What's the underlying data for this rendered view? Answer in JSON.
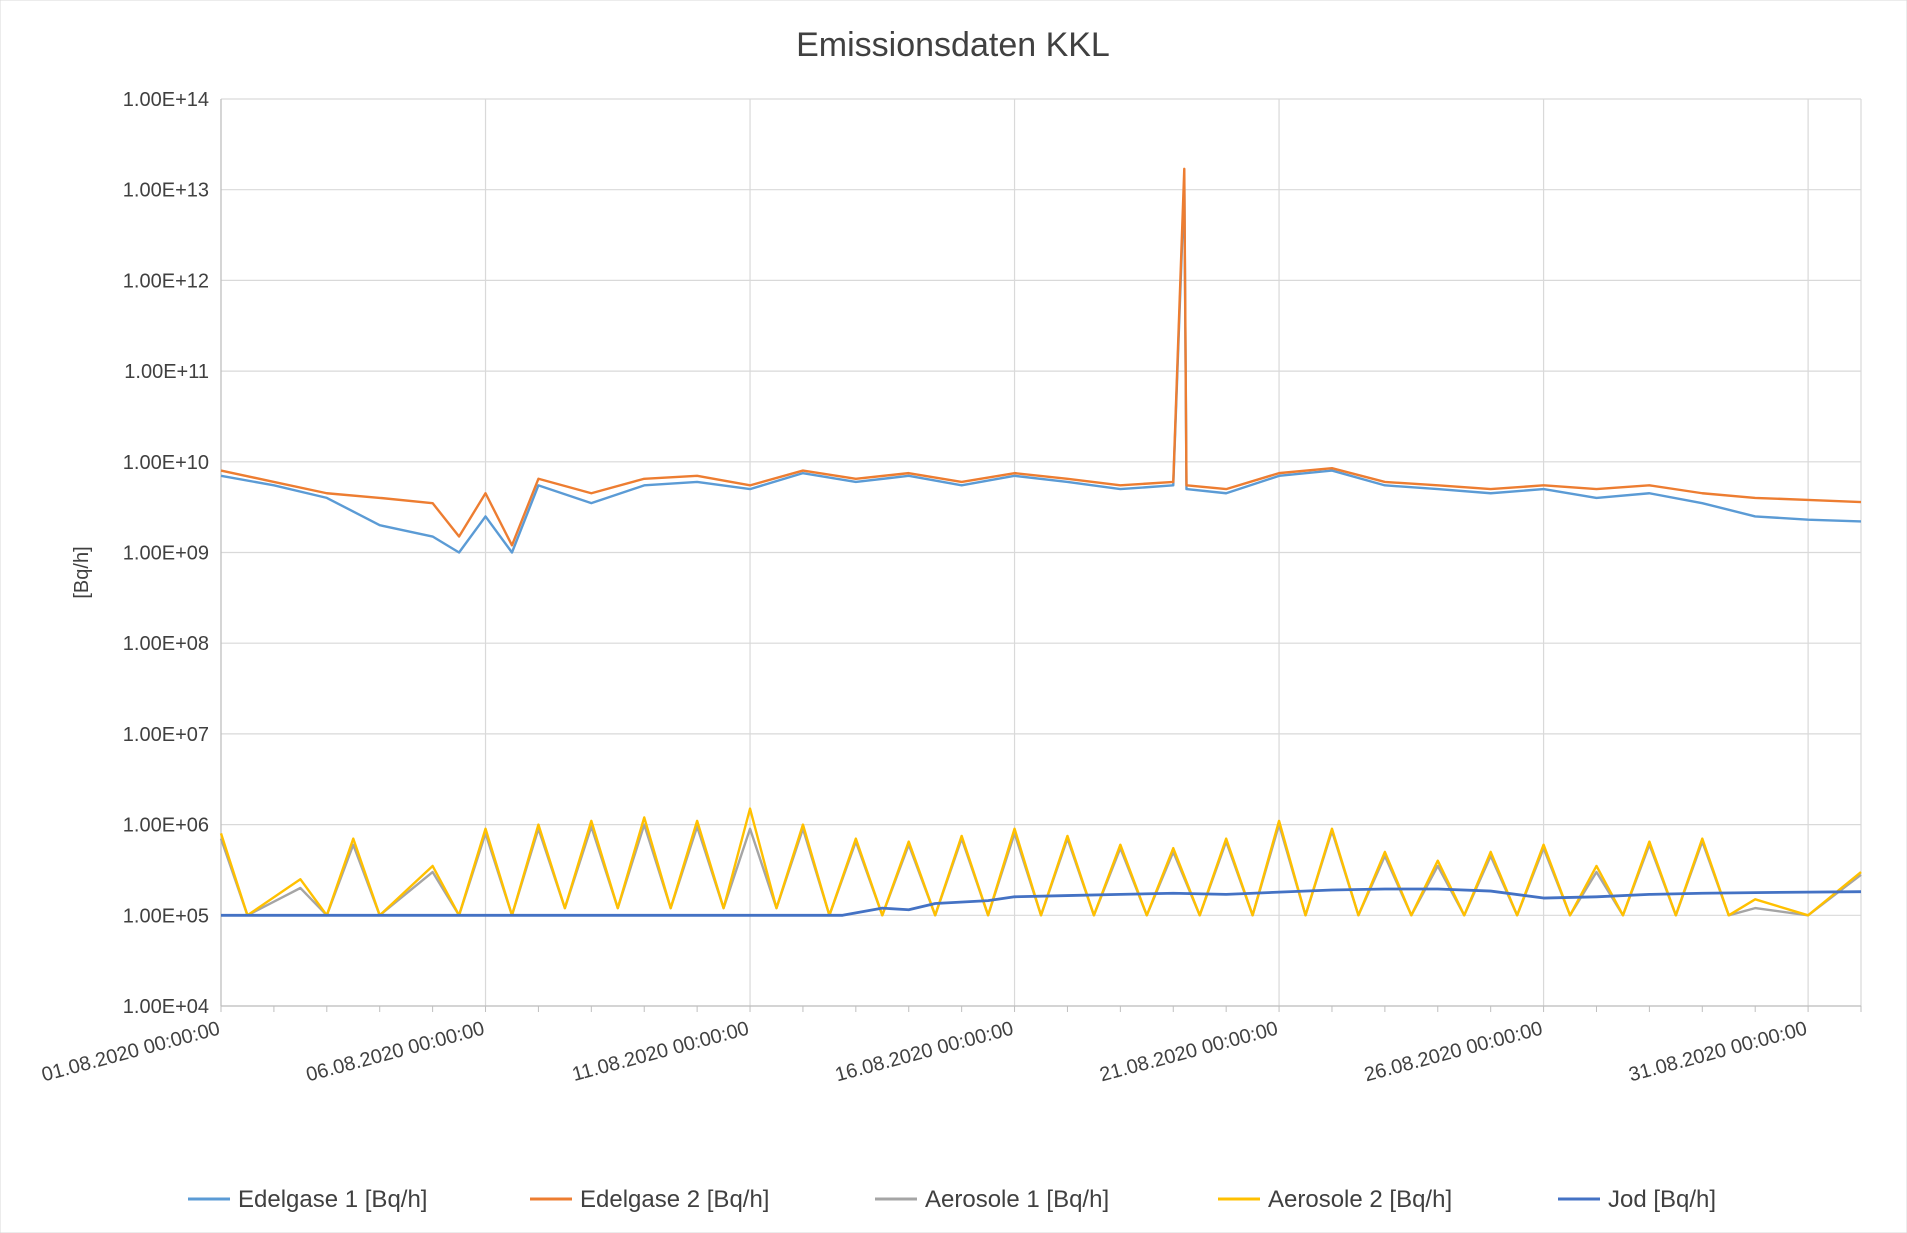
{
  "chart_data": {
    "type": "line",
    "title": "Emissionsdaten KKL",
    "ylabel": "[Bq/h]",
    "xlabel": "",
    "yscale": "log",
    "ylim": [
      10000,
      100000000000000
    ],
    "y_tick_labels": [
      "1.00E+04",
      "1.00E+05",
      "1.00E+06",
      "1.00E+07",
      "1.00E+08",
      "1.00E+09",
      "1.00E+10",
      "1.00E+11",
      "1.00E+12",
      "1.00E+13",
      "1.00E+14"
    ],
    "y_tick_values": [
      10000,
      100000,
      1000000,
      10000000,
      100000000,
      1000000000,
      10000000000,
      100000000000,
      1000000000000,
      10000000000000,
      100000000000000
    ],
    "xlim": [
      "01.08.2020 00:00:00",
      "01.09.2020 00:00:00"
    ],
    "x_tick_labels": [
      "01.08.2020 00:00:00",
      "06.08.2020 00:00:00",
      "11.08.2020 00:00:00",
      "16.08.2020 00:00:00",
      "21.08.2020 00:00:00",
      "26.08.2020 00:00:00",
      "31.08.2020 00:00:00"
    ],
    "grid": true,
    "legend_position": "bottom",
    "series": [
      {
        "name": "Edelgase 1 [Bq/h]",
        "color": "#5B9BD5",
        "points": [
          [
            "01.08.2020 00:00:00",
            7000000000
          ],
          [
            "02.08.2020 00:00:00",
            5500000000
          ],
          [
            "03.08.2020 00:00:00",
            4000000000
          ],
          [
            "04.08.2020 00:00:00",
            2000000000
          ],
          [
            "05.08.2020 00:00:00",
            1500000000
          ],
          [
            "05.08.2020 12:00:00",
            1000000000
          ],
          [
            "06.08.2020 00:00:00",
            2500000000
          ],
          [
            "06.08.2020 12:00:00",
            1000000000
          ],
          [
            "07.08.2020 00:00:00",
            5500000000
          ],
          [
            "08.08.2020 00:00:00",
            3500000000
          ],
          [
            "09.08.2020 00:00:00",
            5500000000
          ],
          [
            "10.08.2020 00:00:00",
            6000000000
          ],
          [
            "11.08.2020 00:00:00",
            5000000000
          ],
          [
            "12.08.2020 00:00:00",
            7500000000
          ],
          [
            "13.08.2020 00:00:00",
            6000000000
          ],
          [
            "14.08.2020 00:00:00",
            7000000000
          ],
          [
            "15.08.2020 00:00:00",
            5500000000
          ],
          [
            "16.08.2020 00:00:00",
            7000000000
          ],
          [
            "17.08.2020 00:00:00",
            6000000000
          ],
          [
            "18.08.2020 00:00:00",
            5000000000
          ],
          [
            "19.08.2020 00:00:00",
            5500000000
          ],
          [
            "19.08.2020 05:00:00",
            12000000000000
          ],
          [
            "19.08.2020 06:00:00",
            5000000000
          ],
          [
            "20.08.2020 00:00:00",
            4500000000
          ],
          [
            "21.08.2020 00:00:00",
            7000000000
          ],
          [
            "22.08.2020 00:00:00",
            8000000000
          ],
          [
            "23.08.2020 00:00:00",
            5500000000
          ],
          [
            "24.08.2020 00:00:00",
            5000000000
          ],
          [
            "25.08.2020 00:00:00",
            4500000000
          ],
          [
            "26.08.2020 00:00:00",
            5000000000
          ],
          [
            "27.08.2020 00:00:00",
            4000000000
          ],
          [
            "28.08.2020 00:00:00",
            4500000000
          ],
          [
            "29.08.2020 00:00:00",
            3500000000
          ],
          [
            "30.08.2020 00:00:00",
            2500000000
          ],
          [
            "31.08.2020 00:00:00",
            2300000000
          ],
          [
            "01.09.2020 00:00:00",
            2200000000
          ]
        ]
      },
      {
        "name": "Edelgase 2 [Bq/h]",
        "color": "#ED7D31",
        "points": [
          [
            "01.08.2020 00:00:00",
            8000000000
          ],
          [
            "02.08.2020 00:00:00",
            6000000000
          ],
          [
            "03.08.2020 00:00:00",
            4500000000
          ],
          [
            "04.08.2020 00:00:00",
            4000000000
          ],
          [
            "05.08.2020 00:00:00",
            3500000000
          ],
          [
            "05.08.2020 12:00:00",
            1500000000
          ],
          [
            "06.08.2020 00:00:00",
            4500000000
          ],
          [
            "06.08.2020 12:00:00",
            1200000000
          ],
          [
            "07.08.2020 00:00:00",
            6500000000
          ],
          [
            "08.08.2020 00:00:00",
            4500000000
          ],
          [
            "09.08.2020 00:00:00",
            6500000000
          ],
          [
            "10.08.2020 00:00:00",
            7000000000
          ],
          [
            "11.08.2020 00:00:00",
            5500000000
          ],
          [
            "12.08.2020 00:00:00",
            8000000000
          ],
          [
            "13.08.2020 00:00:00",
            6500000000
          ],
          [
            "14.08.2020 00:00:00",
            7500000000
          ],
          [
            "15.08.2020 00:00:00",
            6000000000
          ],
          [
            "16.08.2020 00:00:00",
            7500000000
          ],
          [
            "17.08.2020 00:00:00",
            6500000000
          ],
          [
            "18.08.2020 00:00:00",
            5500000000
          ],
          [
            "19.08.2020 00:00:00",
            6000000000
          ],
          [
            "19.08.2020 05:00:00",
            17000000000000
          ],
          [
            "19.08.2020 06:00:00",
            5500000000
          ],
          [
            "20.08.2020 00:00:00",
            5000000000
          ],
          [
            "21.08.2020 00:00:00",
            7500000000
          ],
          [
            "22.08.2020 00:00:00",
            8500000000
          ],
          [
            "23.08.2020 00:00:00",
            6000000000
          ],
          [
            "24.08.2020 00:00:00",
            5500000000
          ],
          [
            "25.08.2020 00:00:00",
            5000000000
          ],
          [
            "26.08.2020 00:00:00",
            5500000000
          ],
          [
            "27.08.2020 00:00:00",
            5000000000
          ],
          [
            "28.08.2020 00:00:00",
            5500000000
          ],
          [
            "29.08.2020 00:00:00",
            4500000000
          ],
          [
            "30.08.2020 00:00:00",
            4000000000
          ],
          [
            "31.08.2020 00:00:00",
            3800000000
          ],
          [
            "01.09.2020 00:00:00",
            3600000000
          ]
        ]
      },
      {
        "name": "Aerosole 1 [Bq/h]",
        "color": "#A5A5A5",
        "points": [
          [
            "01.08.2020 00:00:00",
            700000
          ],
          [
            "01.08.2020 12:00:00",
            100000
          ],
          [
            "02.08.2020 12:00:00",
            200000
          ],
          [
            "03.08.2020 00:00:00",
            100000
          ],
          [
            "03.08.2020 12:00:00",
            600000
          ],
          [
            "04.08.2020 00:00:00",
            100000
          ],
          [
            "05.08.2020 00:00:00",
            300000
          ],
          [
            "05.08.2020 12:00:00",
            100000
          ],
          [
            "06.08.2020 00:00:00",
            800000
          ],
          [
            "06.08.2020 12:00:00",
            100000
          ],
          [
            "07.08.2020 00:00:00",
            900000
          ],
          [
            "07.08.2020 12:00:00",
            120000
          ],
          [
            "08.08.2020 00:00:00",
            950000
          ],
          [
            "08.08.2020 12:00:00",
            120000
          ],
          [
            "09.08.2020 00:00:00",
            1000000
          ],
          [
            "09.08.2020 12:00:00",
            120000
          ],
          [
            "10.08.2020 00:00:00",
            950000
          ],
          [
            "10.08.2020 12:00:00",
            120000
          ],
          [
            "11.08.2020 00:00:00",
            900000
          ],
          [
            "11.08.2020 12:00:00",
            120000
          ],
          [
            "12.08.2020 00:00:00",
            900000
          ],
          [
            "12.08.2020 12:00:00",
            100000
          ],
          [
            "13.08.2020 00:00:00",
            650000
          ],
          [
            "13.08.2020 12:00:00",
            100000
          ],
          [
            "14.08.2020 00:00:00",
            600000
          ],
          [
            "14.08.2020 12:00:00",
            100000
          ],
          [
            "15.08.2020 00:00:00",
            700000
          ],
          [
            "15.08.2020 12:00:00",
            100000
          ],
          [
            "16.08.2020 00:00:00",
            800000
          ],
          [
            "16.08.2020 12:00:00",
            100000
          ],
          [
            "17.08.2020 00:00:00",
            700000
          ],
          [
            "17.08.2020 12:00:00",
            100000
          ],
          [
            "18.08.2020 00:00:00",
            550000
          ],
          [
            "18.08.2020 12:00:00",
            100000
          ],
          [
            "19.08.2020 00:00:00",
            500000
          ],
          [
            "19.08.2020 12:00:00",
            100000
          ],
          [
            "20.08.2020 00:00:00",
            650000
          ],
          [
            "20.08.2020 12:00:00",
            100000
          ],
          [
            "21.08.2020 00:00:00",
            1000000
          ],
          [
            "21.08.2020 12:00:00",
            100000
          ],
          [
            "22.08.2020 00:00:00",
            850000
          ],
          [
            "22.08.2020 12:00:00",
            100000
          ],
          [
            "23.08.2020 00:00:00",
            450000
          ],
          [
            "23.08.2020 12:00:00",
            100000
          ],
          [
            "24.08.2020 00:00:00",
            350000
          ],
          [
            "24.08.2020 12:00:00",
            100000
          ],
          [
            "25.08.2020 00:00:00",
            450000
          ],
          [
            "25.08.2020 12:00:00",
            100000
          ],
          [
            "26.08.2020 00:00:00",
            550000
          ],
          [
            "26.08.2020 12:00:00",
            100000
          ],
          [
            "27.08.2020 00:00:00",
            300000
          ],
          [
            "27.08.2020 12:00:00",
            100000
          ],
          [
            "28.08.2020 00:00:00",
            600000
          ],
          [
            "28.08.2020 12:00:00",
            100000
          ],
          [
            "29.08.2020 00:00:00",
            650000
          ],
          [
            "29.08.2020 12:00:00",
            100000
          ],
          [
            "30.08.2020 00:00:00",
            120000
          ],
          [
            "31.08.2020 00:00:00",
            100000
          ],
          [
            "01.09.2020 00:00:00",
            280000
          ]
        ]
      },
      {
        "name": "Aerosole 2 [Bq/h]",
        "color": "#FFC000",
        "points": [
          [
            "01.08.2020 00:00:00",
            800000
          ],
          [
            "01.08.2020 12:00:00",
            100000
          ],
          [
            "02.08.2020 12:00:00",
            250000
          ],
          [
            "03.08.2020 00:00:00",
            100000
          ],
          [
            "03.08.2020 12:00:00",
            700000
          ],
          [
            "04.08.2020 00:00:00",
            100000
          ],
          [
            "05.08.2020 00:00:00",
            350000
          ],
          [
            "05.08.2020 12:00:00",
            100000
          ],
          [
            "06.08.2020 00:00:00",
            900000
          ],
          [
            "06.08.2020 12:00:00",
            100000
          ],
          [
            "07.08.2020 00:00:00",
            1000000
          ],
          [
            "07.08.2020 12:00:00",
            120000
          ],
          [
            "08.08.2020 00:00:00",
            1100000
          ],
          [
            "08.08.2020 12:00:00",
            120000
          ],
          [
            "09.08.2020 00:00:00",
            1200000
          ],
          [
            "09.08.2020 12:00:00",
            120000
          ],
          [
            "10.08.2020 00:00:00",
            1100000
          ],
          [
            "10.08.2020 12:00:00",
            120000
          ],
          [
            "11.08.2020 00:00:00",
            1500000
          ],
          [
            "11.08.2020 12:00:00",
            120000
          ],
          [
            "12.08.2020 00:00:00",
            1000000
          ],
          [
            "12.08.2020 12:00:00",
            100000
          ],
          [
            "13.08.2020 00:00:00",
            700000
          ],
          [
            "13.08.2020 12:00:00",
            100000
          ],
          [
            "14.08.2020 00:00:00",
            650000
          ],
          [
            "14.08.2020 12:00:00",
            100000
          ],
          [
            "15.08.2020 00:00:00",
            750000
          ],
          [
            "15.08.2020 12:00:00",
            100000
          ],
          [
            "16.08.2020 00:00:00",
            900000
          ],
          [
            "16.08.2020 12:00:00",
            100000
          ],
          [
            "17.08.2020 00:00:00",
            750000
          ],
          [
            "17.08.2020 12:00:00",
            100000
          ],
          [
            "18.08.2020 00:00:00",
            600000
          ],
          [
            "18.08.2020 12:00:00",
            100000
          ],
          [
            "19.08.2020 00:00:00",
            550000
          ],
          [
            "19.08.2020 12:00:00",
            100000
          ],
          [
            "20.08.2020 00:00:00",
            700000
          ],
          [
            "20.08.2020 12:00:00",
            100000
          ],
          [
            "21.08.2020 00:00:00",
            1100000
          ],
          [
            "21.08.2020 12:00:00",
            100000
          ],
          [
            "22.08.2020 00:00:00",
            900000
          ],
          [
            "22.08.2020 12:00:00",
            100000
          ],
          [
            "23.08.2020 00:00:00",
            500000
          ],
          [
            "23.08.2020 12:00:00",
            100000
          ],
          [
            "24.08.2020 00:00:00",
            400000
          ],
          [
            "24.08.2020 12:00:00",
            100000
          ],
          [
            "25.08.2020 00:00:00",
            500000
          ],
          [
            "25.08.2020 12:00:00",
            100000
          ],
          [
            "26.08.2020 00:00:00",
            600000
          ],
          [
            "26.08.2020 12:00:00",
            100000
          ],
          [
            "27.08.2020 00:00:00",
            350000
          ],
          [
            "27.08.2020 12:00:00",
            100000
          ],
          [
            "28.08.2020 00:00:00",
            650000
          ],
          [
            "28.08.2020 12:00:00",
            100000
          ],
          [
            "29.08.2020 00:00:00",
            700000
          ],
          [
            "29.08.2020 12:00:00",
            100000
          ],
          [
            "30.08.2020 00:00:00",
            150000
          ],
          [
            "31.08.2020 00:00:00",
            100000
          ],
          [
            "01.09.2020 00:00:00",
            300000
          ]
        ]
      },
      {
        "name": "Jod [Bq/h]",
        "color": "#4472C4",
        "points": [
          [
            "01.08.2020 00:00:00",
            100000
          ],
          [
            "11.08.2020 00:00:00",
            100000
          ],
          [
            "12.08.2020 18:00:00",
            100000
          ],
          [
            "13.08.2020 12:00:00",
            120000
          ],
          [
            "14.08.2020 00:00:00",
            115000
          ],
          [
            "14.08.2020 12:00:00",
            135000
          ],
          [
            "15.08.2020 12:00:00",
            145000
          ],
          [
            "16.08.2020 00:00:00",
            160000
          ],
          [
            "17.08.2020 00:00:00",
            165000
          ],
          [
            "18.08.2020 00:00:00",
            170000
          ],
          [
            "19.08.2020 00:00:00",
            175000
          ],
          [
            "20.08.2020 00:00:00",
            170000
          ],
          [
            "21.08.2020 00:00:00",
            180000
          ],
          [
            "22.08.2020 00:00:00",
            190000
          ],
          [
            "23.08.2020 00:00:00",
            195000
          ],
          [
            "24.08.2020 00:00:00",
            195000
          ],
          [
            "25.08.2020 00:00:00",
            185000
          ],
          [
            "26.08.2020 00:00:00",
            155000
          ],
          [
            "27.08.2020 00:00:00",
            160000
          ],
          [
            "28.08.2020 00:00:00",
            170000
          ],
          [
            "29.08.2020 00:00:00",
            175000
          ],
          [
            "30.08.2020 00:00:00",
            178000
          ],
          [
            "31.08.2020 00:00:00",
            180000
          ],
          [
            "01.09.2020 00:00:00",
            182000
          ]
        ]
      }
    ]
  }
}
